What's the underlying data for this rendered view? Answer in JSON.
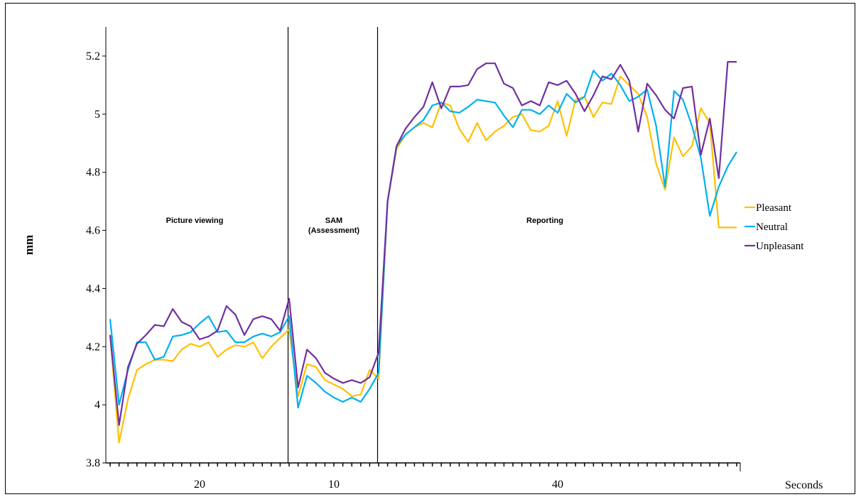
{
  "chart_data": {
    "type": "line",
    "ylabel": "mm",
    "xlabel": "Seconds",
    "ylim": [
      3.8,
      5.3
    ],
    "yticks": [
      3.8,
      4,
      4.2,
      4.4,
      4.6,
      4.8,
      5,
      5.2
    ],
    "ytick_labels": [
      "3.8",
      "4",
      "4.2",
      "4.4",
      "4.6",
      "4.8",
      "5",
      "5.2"
    ],
    "grid": false,
    "legend_position": "right",
    "phases": [
      {
        "label": [
          "Picture viewing"
        ],
        "duration_label": "20",
        "start_index": 0,
        "end_index": 20
      },
      {
        "label": [
          "SAM",
          "(Assessment)"
        ],
        "duration_label": "10",
        "start_index": 20,
        "end_index": 30
      },
      {
        "label": [
          "Reporting"
        ],
        "duration_label": "40",
        "start_index": 30,
        "end_index": 70
      }
    ],
    "x": [
      0,
      1,
      2,
      3,
      4,
      5,
      6,
      7,
      8,
      9,
      10,
      11,
      12,
      13,
      14,
      15,
      16,
      17,
      18,
      19,
      20,
      21,
      22,
      23,
      24,
      25,
      26,
      27,
      28,
      29,
      30,
      31,
      32,
      33,
      34,
      35,
      36,
      37,
      38,
      39,
      40,
      41,
      42,
      43,
      44,
      45,
      46,
      47,
      48,
      49,
      50,
      51,
      52,
      53,
      54,
      55,
      56,
      57,
      58,
      59,
      60,
      61,
      62,
      63,
      64,
      65,
      66,
      67,
      68,
      69,
      70
    ],
    "series": [
      {
        "name": "Pleasant",
        "color": "#FFC000",
        "values": [
          4.24,
          3.87,
          4.02,
          4.12,
          4.14,
          4.155,
          4.155,
          4.15,
          4.19,
          4.21,
          4.2,
          4.215,
          4.165,
          4.19,
          4.205,
          4.2,
          4.215,
          4.16,
          4.2,
          4.23,
          4.26,
          4.03,
          4.14,
          4.13,
          4.085,
          4.07,
          4.055,
          4.03,
          4.035,
          4.12,
          4.09,
          4.7,
          4.88,
          4.93,
          4.955,
          4.97,
          4.955,
          5.04,
          5.03,
          4.95,
          4.905,
          4.97,
          4.91,
          4.94,
          4.96,
          4.99,
          5.0,
          4.945,
          4.94,
          4.96,
          5.045,
          4.925,
          5.05,
          5.06,
          4.99,
          5.04,
          5.035,
          5.13,
          5.1,
          5.07,
          4.99,
          4.83,
          4.74,
          4.92,
          4.855,
          4.89,
          5.02,
          4.97,
          4.61,
          4.61,
          4.61
        ]
      },
      {
        "name": "Neutral",
        "color": "#00B0F0",
        "values": [
          4.295,
          4.0,
          4.12,
          4.215,
          4.215,
          4.155,
          4.165,
          4.235,
          4.24,
          4.25,
          4.28,
          4.305,
          4.25,
          4.255,
          4.215,
          4.215,
          4.235,
          4.245,
          4.235,
          4.25,
          4.305,
          3.99,
          4.1,
          4.075,
          4.045,
          4.025,
          4.01,
          4.025,
          4.01,
          4.055,
          4.11,
          4.7,
          4.89,
          4.93,
          4.955,
          4.98,
          5.03,
          5.04,
          5.01,
          5.005,
          5.025,
          5.05,
          5.045,
          5.04,
          4.995,
          4.955,
          5.015,
          5.015,
          5.0,
          5.03,
          5.005,
          5.07,
          5.04,
          5.06,
          5.15,
          5.115,
          5.14,
          5.1,
          5.045,
          5.06,
          5.085,
          4.96,
          4.75,
          5.08,
          5.05,
          4.96,
          4.85,
          4.65,
          4.75,
          4.82,
          4.87
        ]
      },
      {
        "name": "Unpleasant",
        "color": "#7030A0",
        "values": [
          4.24,
          3.93,
          4.13,
          4.21,
          4.24,
          4.275,
          4.27,
          4.33,
          4.285,
          4.27,
          4.225,
          4.235,
          4.255,
          4.34,
          4.31,
          4.24,
          4.295,
          4.305,
          4.295,
          4.255,
          4.365,
          4.06,
          4.19,
          4.16,
          4.11,
          4.09,
          4.075,
          4.085,
          4.075,
          4.095,
          4.18,
          4.7,
          4.89,
          4.95,
          4.99,
          5.025,
          5.11,
          5.02,
          5.095,
          5.095,
          5.1,
          5.155,
          5.175,
          5.175,
          5.105,
          5.09,
          5.03,
          5.045,
          5.03,
          5.11,
          5.1,
          5.115,
          5.07,
          5.01,
          5.065,
          5.13,
          5.12,
          5.17,
          5.115,
          4.94,
          5.105,
          5.065,
          5.015,
          4.985,
          5.09,
          5.095,
          4.86,
          4.985,
          4.78,
          5.18,
          5.18
        ]
      }
    ]
  }
}
